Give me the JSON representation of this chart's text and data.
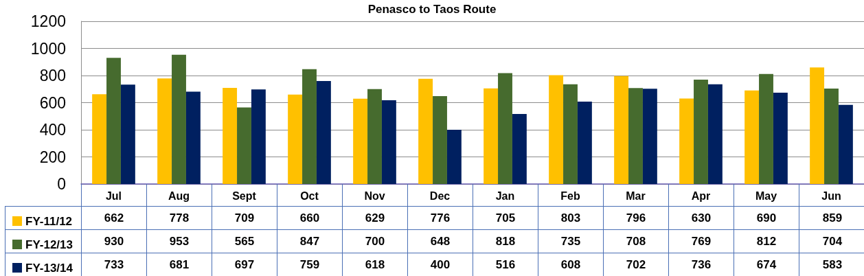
{
  "chart_data": {
    "type": "bar",
    "title": "Penasco to Taos Route",
    "categories": [
      "Jul",
      "Aug",
      "Sept",
      "Oct",
      "Nov",
      "Dec",
      "Jan",
      "Feb",
      "Mar",
      "Apr",
      "May",
      "Jun"
    ],
    "series": [
      {
        "name": "FY-11/12",
        "color": "#ffc000",
        "values": [
          662,
          778,
          709,
          660,
          629,
          776,
          705,
          803,
          796,
          630,
          690,
          859
        ]
      },
      {
        "name": "FY-12/13",
        "color": "#466b2e",
        "values": [
          930,
          953,
          565,
          847,
          700,
          648,
          818,
          735,
          708,
          769,
          812,
          704
        ]
      },
      {
        "name": "FY-13/14",
        "color": "#002060",
        "values": [
          733,
          681,
          697,
          759,
          618,
          400,
          516,
          608,
          702,
          736,
          674,
          583
        ]
      }
    ],
    "ylim": [
      0,
      1200
    ],
    "yticks": [
      0,
      200,
      400,
      600,
      800,
      1000,
      1200
    ],
    "grid": "y",
    "legend": "bottom left",
    "data_labels": true
  }
}
